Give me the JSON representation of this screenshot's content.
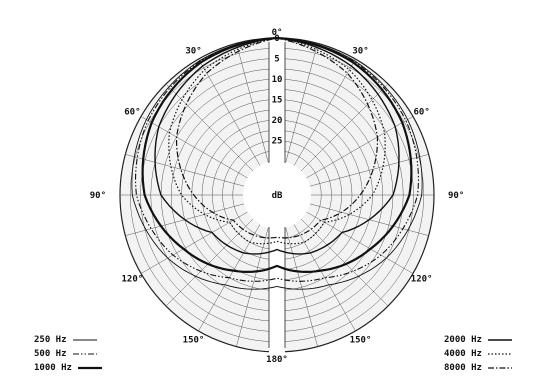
{
  "chart_data": {
    "type": "polar",
    "angle_labels": [
      {
        "deg": 0,
        "text": "0°"
      },
      {
        "deg": 30,
        "text": "30°"
      },
      {
        "deg": -30,
        "text": "30°"
      },
      {
        "deg": 60,
        "text": "60°"
      },
      {
        "deg": -60,
        "text": "60°"
      },
      {
        "deg": 90,
        "text": "90°"
      },
      {
        "deg": -90,
        "text": "90°"
      },
      {
        "deg": 120,
        "text": "120°"
      },
      {
        "deg": -120,
        "text": "120°"
      },
      {
        "deg": 150,
        "text": "150°"
      },
      {
        "deg": -150,
        "text": "150°"
      },
      {
        "deg": 180,
        "text": "180°"
      }
    ],
    "radial_axis": {
      "unit": "dB",
      "ticks": [
        0,
        5,
        10,
        15,
        20,
        25
      ],
      "range": [
        0,
        30
      ]
    },
    "legend_left": [
      {
        "label": "250 Hz",
        "style": "solid-thin"
      },
      {
        "label": "500 Hz",
        "style": "dash-dot-dot"
      },
      {
        "label": "1000 Hz",
        "style": "solid-thick"
      }
    ],
    "legend_right": [
      {
        "label": "2000 Hz",
        "style": "solid"
      },
      {
        "label": "4000 Hz",
        "style": "dotted"
      },
      {
        "label": "8000 Hz",
        "style": "dash-dot"
      }
    ],
    "series": [
      {
        "name": "250 Hz",
        "style": "solid-thin",
        "points": [
          [
            0,
            0
          ],
          [
            30,
            0.5
          ],
          [
            60,
            1.5
          ],
          [
            90,
            3
          ],
          [
            120,
            7.5
          ],
          [
            150,
            13
          ],
          [
            180,
            16
          ],
          [
            -150,
            13
          ],
          [
            -120,
            7.5
          ],
          [
            -90,
            3
          ],
          [
            -60,
            1.5
          ],
          [
            -30,
            0.5
          ]
        ]
      },
      {
        "name": "500 Hz",
        "style": "dash-dot-dot",
        "points": [
          [
            0,
            0
          ],
          [
            30,
            0.7
          ],
          [
            60,
            2
          ],
          [
            90,
            4
          ],
          [
            120,
            9
          ],
          [
            150,
            15
          ],
          [
            180,
            18
          ],
          [
            -150,
            15
          ],
          [
            -120,
            9
          ],
          [
            -90,
            4
          ],
          [
            -60,
            2
          ],
          [
            -30,
            0.7
          ]
        ]
      },
      {
        "name": "1000 Hz",
        "style": "solid-thick",
        "points": [
          [
            0,
            0
          ],
          [
            30,
            1
          ],
          [
            60,
            3
          ],
          [
            90,
            6
          ],
          [
            120,
            12
          ],
          [
            150,
            17
          ],
          [
            180,
            21
          ],
          [
            -150,
            17
          ],
          [
            -120,
            12
          ],
          [
            -90,
            6
          ],
          [
            -60,
            3
          ],
          [
            -30,
            1
          ]
        ]
      },
      {
        "name": "2000 Hz",
        "style": "solid",
        "points": [
          [
            0,
            0
          ],
          [
            30,
            2
          ],
          [
            60,
            5
          ],
          [
            90,
            10
          ],
          [
            120,
            20
          ],
          [
            150,
            22
          ],
          [
            180,
            25
          ],
          [
            -150,
            22
          ],
          [
            -120,
            20
          ],
          [
            -90,
            10
          ],
          [
            -60,
            5
          ],
          [
            -30,
            2
          ]
        ]
      },
      {
        "name": "4000 Hz",
        "style": "dotted",
        "points": [
          [
            0,
            0
          ],
          [
            30,
            3
          ],
          [
            60,
            8
          ],
          [
            90,
            15
          ],
          [
            120,
            25
          ],
          [
            150,
            25
          ],
          [
            180,
            27
          ],
          [
            -150,
            25
          ],
          [
            -120,
            25
          ],
          [
            -90,
            15
          ],
          [
            -60,
            8
          ],
          [
            -30,
            3
          ]
        ]
      },
      {
        "name": "8000 Hz",
        "style": "dash-dot",
        "points": [
          [
            0,
            0
          ],
          [
            30,
            4
          ],
          [
            60,
            10
          ],
          [
            90,
            18
          ],
          [
            120,
            26
          ],
          [
            150,
            27
          ],
          [
            180,
            28
          ],
          [
            -150,
            27
          ],
          [
            -120,
            26
          ],
          [
            -90,
            18
          ],
          [
            -60,
            10
          ],
          [
            -30,
            4
          ]
        ]
      }
    ]
  }
}
